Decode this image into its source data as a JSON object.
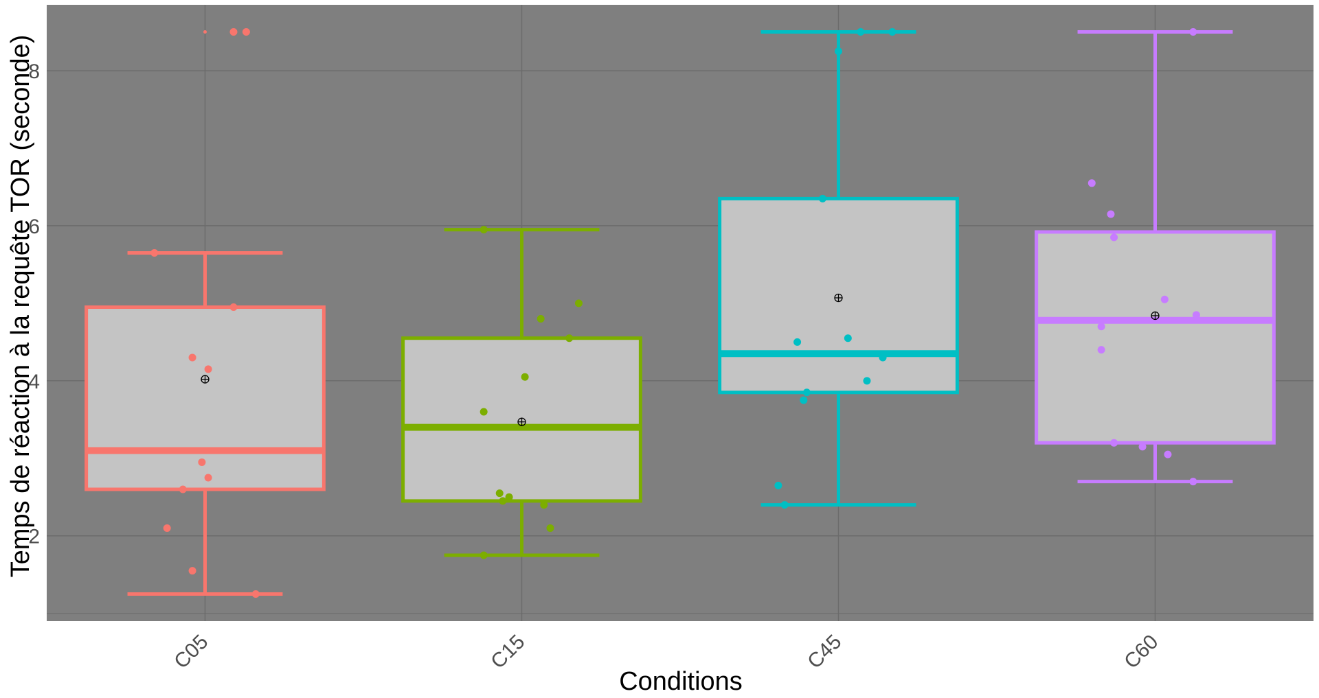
{
  "chart_data": {
    "type": "boxplot",
    "title": "",
    "xlabel": "Conditions",
    "ylabel": "Temps de réaction à la requête TOR (seconde)",
    "ylim": [
      0.9,
      8.85
    ],
    "y_ticks": [
      2,
      4,
      6,
      8
    ],
    "categories": [
      "C05",
      "C15",
      "C45",
      "C60"
    ],
    "colors": {
      "C05": "#F8766D",
      "C15": "#7CAE00",
      "C45": "#00BFC4",
      "C60": "#C77CFF",
      "panel_background": "#7F7F7F",
      "box_fill": "#C4C4C4",
      "grid": "#6B6B6B"
    },
    "grid": true,
    "legend": "none",
    "x_tick_rotation_deg": 45,
    "boxes": [
      {
        "category": "C05",
        "whisker_low": 1.25,
        "q1": 2.6,
        "median": 3.1,
        "q3": 4.95,
        "whisker_high": 5.65,
        "mean": 4.02
      },
      {
        "category": "C15",
        "whisker_low": 1.75,
        "q1": 2.45,
        "median": 3.4,
        "q3": 4.55,
        "whisker_high": 5.95,
        "mean": 3.47
      },
      {
        "category": "C45",
        "whisker_low": 2.4,
        "q1": 3.85,
        "median": 4.35,
        "q3": 6.35,
        "whisker_high": 8.5,
        "mean": 5.07
      },
      {
        "category": "C60",
        "whisker_low": 2.7,
        "q1": 3.2,
        "median": 4.78,
        "q3": 5.92,
        "whisker_high": 8.5,
        "mean": 4.84
      }
    ],
    "outliers": [
      {
        "category": "C05",
        "y": 8.5
      }
    ],
    "points": [
      {
        "category": "C05",
        "offset": -0.16,
        "y": 5.65
      },
      {
        "category": "C05",
        "offset": 0.09,
        "y": 4.95
      },
      {
        "category": "C05",
        "offset": -0.04,
        "y": 4.3
      },
      {
        "category": "C05",
        "offset": 0.01,
        "y": 4.15
      },
      {
        "category": "C05",
        "offset": -0.01,
        "y": 2.95
      },
      {
        "category": "C05",
        "offset": 0.01,
        "y": 2.75
      },
      {
        "category": "C05",
        "offset": -0.07,
        "y": 2.6
      },
      {
        "category": "C05",
        "offset": -0.12,
        "y": 2.1
      },
      {
        "category": "C05",
        "offset": -0.04,
        "y": 1.55
      },
      {
        "category": "C05",
        "offset": 0.16,
        "y": 1.25
      },
      {
        "category": "C05",
        "offset": 0.09,
        "y": 8.5
      },
      {
        "category": "C05",
        "offset": 0.13,
        "y": 8.5
      },
      {
        "category": "C15",
        "offset": -0.12,
        "y": 5.95
      },
      {
        "category": "C15",
        "offset": 0.18,
        "y": 5.0
      },
      {
        "category": "C15",
        "offset": 0.06,
        "y": 4.8
      },
      {
        "category": "C15",
        "offset": 0.15,
        "y": 4.55
      },
      {
        "category": "C15",
        "offset": 0.01,
        "y": 4.05
      },
      {
        "category": "C15",
        "offset": -0.12,
        "y": 3.6
      },
      {
        "category": "C15",
        "offset": -0.07,
        "y": 2.55
      },
      {
        "category": "C15",
        "offset": -0.04,
        "y": 2.5
      },
      {
        "category": "C15",
        "offset": -0.06,
        "y": 2.45
      },
      {
        "category": "C15",
        "offset": 0.07,
        "y": 2.4
      },
      {
        "category": "C15",
        "offset": 0.09,
        "y": 2.1
      },
      {
        "category": "C15",
        "offset": -0.12,
        "y": 1.75
      },
      {
        "category": "C45",
        "offset": 0.07,
        "y": 8.5
      },
      {
        "category": "C45",
        "offset": 0.17,
        "y": 8.5
      },
      {
        "category": "C45",
        "offset": 0.0,
        "y": 8.25
      },
      {
        "category": "C45",
        "offset": -0.05,
        "y": 6.35
      },
      {
        "category": "C45",
        "offset": 0.03,
        "y": 4.55
      },
      {
        "category": "C45",
        "offset": -0.13,
        "y": 4.5
      },
      {
        "category": "C45",
        "offset": 0.14,
        "y": 4.3
      },
      {
        "category": "C45",
        "offset": 0.09,
        "y": 4.0
      },
      {
        "category": "C45",
        "offset": -0.1,
        "y": 3.85
      },
      {
        "category": "C45",
        "offset": -0.11,
        "y": 3.75
      },
      {
        "category": "C45",
        "offset": -0.19,
        "y": 2.65
      },
      {
        "category": "C45",
        "offset": -0.17,
        "y": 2.4
      },
      {
        "category": "C60",
        "offset": 0.12,
        "y": 8.5
      },
      {
        "category": "C60",
        "offset": -0.2,
        "y": 6.55
      },
      {
        "category": "C60",
        "offset": -0.14,
        "y": 6.15
      },
      {
        "category": "C60",
        "offset": -0.13,
        "y": 5.85
      },
      {
        "category": "C60",
        "offset": 0.03,
        "y": 5.05
      },
      {
        "category": "C60",
        "offset": 0.13,
        "y": 4.85
      },
      {
        "category": "C60",
        "offset": -0.17,
        "y": 4.7
      },
      {
        "category": "C60",
        "offset": -0.17,
        "y": 4.4
      },
      {
        "category": "C60",
        "offset": -0.13,
        "y": 3.2
      },
      {
        "category": "C60",
        "offset": -0.04,
        "y": 3.15
      },
      {
        "category": "C60",
        "offset": 0.04,
        "y": 3.05
      },
      {
        "category": "C60",
        "offset": 0.12,
        "y": 2.7
      }
    ]
  }
}
